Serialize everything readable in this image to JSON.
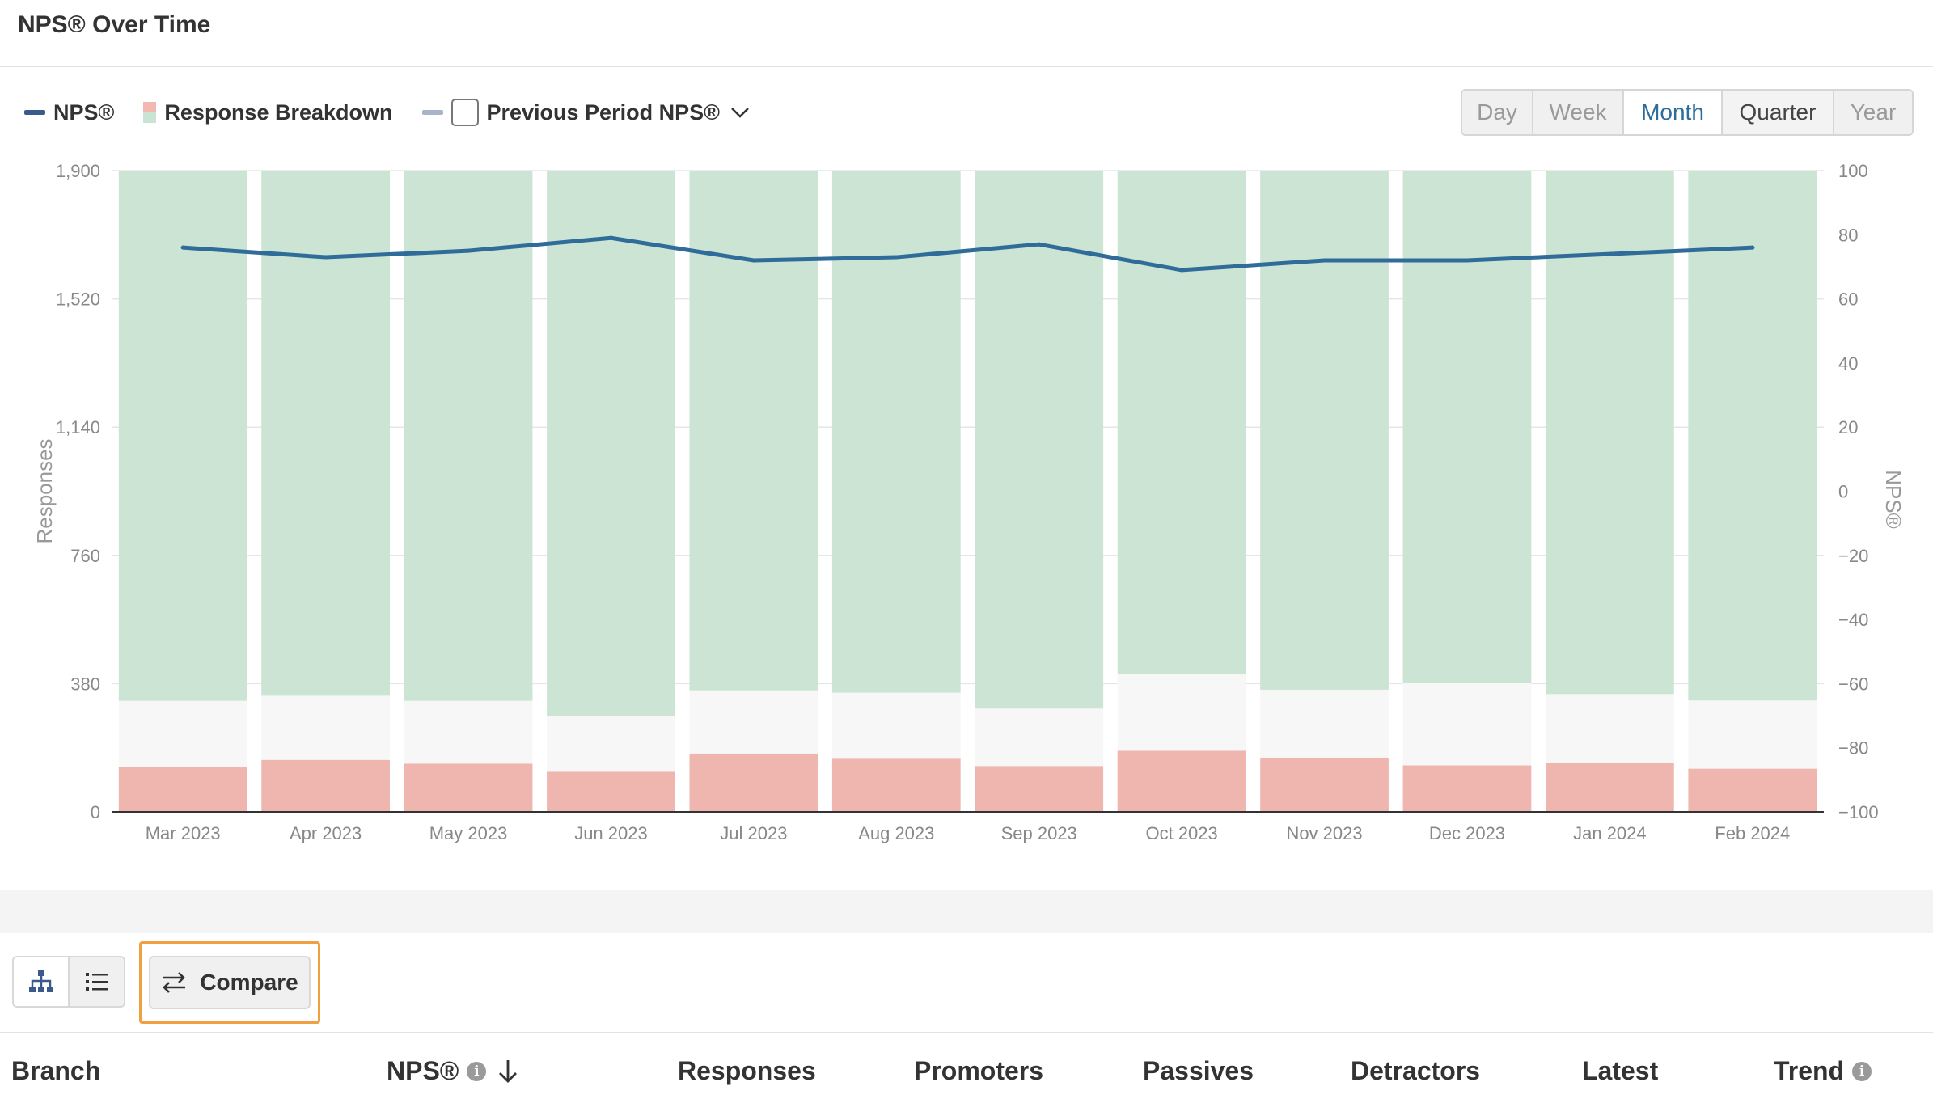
{
  "header": {
    "title": "NPS® Over Time"
  },
  "legend": {
    "items": [
      {
        "label": "NPS®",
        "color": "#3b5a8c"
      },
      {
        "label": "Response Breakdown"
      },
      {
        "label": "Previous Period NPS®",
        "color": "#a9b3c9",
        "checked": false
      }
    ]
  },
  "period_tabs": [
    {
      "label": "Day",
      "state": "disabled"
    },
    {
      "label": "Week",
      "state": "disabled"
    },
    {
      "label": "Month",
      "state": "active"
    },
    {
      "label": "Quarter",
      "state": "enabled"
    },
    {
      "label": "Year",
      "state": "disabled"
    }
  ],
  "colors": {
    "promoters": "#cce4d4",
    "passives": "#f7f7f7",
    "detractors": "#efb6b0",
    "nps_line": "#2f6c99",
    "accent": "#2c6d9c",
    "highlight": "#f0a040"
  },
  "chart_data": {
    "type": "bar",
    "stacked": true,
    "categories": [
      "Mar 2023",
      "Apr 2023",
      "May 2023",
      "Jun 2023",
      "Jul 2023",
      "Aug 2023",
      "Sep 2023",
      "Oct 2023",
      "Nov 2023",
      "Dec 2023",
      "Jan 2024",
      "Feb 2024"
    ],
    "series": [
      {
        "name": "Detractors",
        "values": [
          133,
          154,
          143,
          119,
          173,
          160,
          136,
          181,
          161,
          138,
          145,
          128
        ]
      },
      {
        "name": "Passives",
        "values": [
          196,
          190,
          186,
          164,
          187,
          193,
          170,
          227,
          201,
          244,
          204,
          202
        ]
      },
      {
        "name": "Promoters",
        "values": [
          1571,
          1556,
          1571,
          1617,
          1540,
          1547,
          1594,
          1492,
          1538,
          1518,
          1551,
          1570
        ]
      }
    ],
    "line_series": {
      "name": "NPS®",
      "axis": "right",
      "values": [
        76,
        73,
        75,
        79,
        72,
        73,
        77,
        69,
        72,
        72,
        74,
        76
      ]
    },
    "y_left": {
      "label": "Responses",
      "ticks": [
        "0",
        "380",
        "760",
        "1,140",
        "1,520",
        "1,900"
      ],
      "ylim": [
        0,
        1900
      ]
    },
    "y_right": {
      "label": "NPS®",
      "ticks": [
        "−100",
        "−80",
        "−60",
        "−40",
        "−20",
        "0",
        "20",
        "40",
        "60",
        "80",
        "100"
      ],
      "ylim": [
        -100,
        100
      ]
    },
    "grid": true,
    "legend": "top-left"
  },
  "toolbar": {
    "view_toggle": [
      {
        "icon": "hierarchy-icon",
        "active": true
      },
      {
        "icon": "list-icon",
        "active": false
      }
    ],
    "compare_label": "Compare"
  },
  "table": {
    "columns": [
      "Branch",
      "NPS®",
      "Responses",
      "Promoters",
      "Passives",
      "Detractors",
      "Latest",
      "Trend"
    ]
  }
}
